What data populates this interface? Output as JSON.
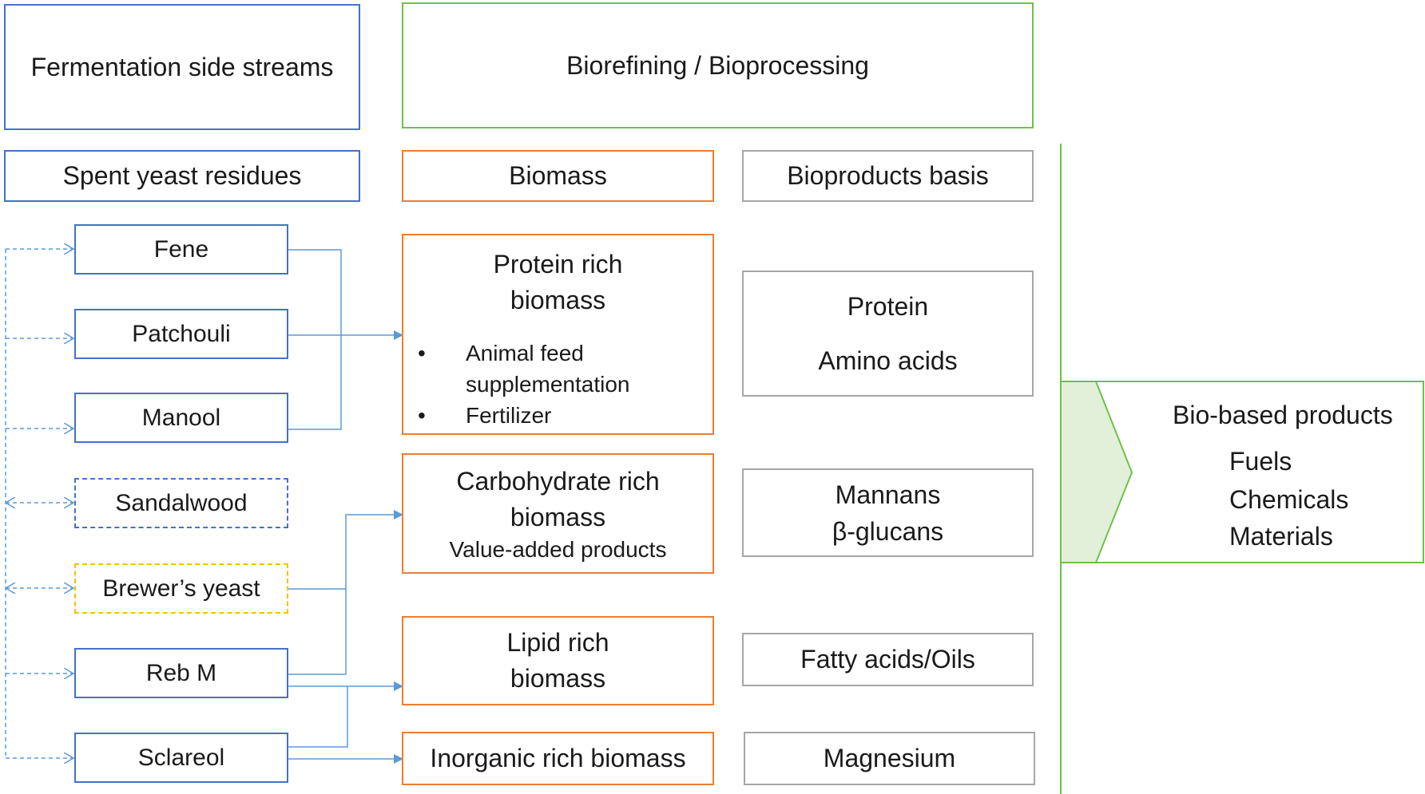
{
  "headers": {
    "fermentation": "Fermentation side streams",
    "biorefining": "Biorefining / Bioprocessing",
    "spent_yeast": "Spent yeast residues",
    "biomass": "Biomass",
    "bioproducts": "Bioproducts basis"
  },
  "sources": [
    {
      "label": "Fene"
    },
    {
      "label": "Patchouli"
    },
    {
      "label": "Manool"
    },
    {
      "label": "Sandalwood"
    },
    {
      "label": "Brewer’s yeast"
    },
    {
      "label": "Reb M"
    },
    {
      "label": "Sclareol"
    }
  ],
  "biomass": {
    "protein": {
      "title1": "Protein rich",
      "title2": "biomass",
      "bullet1a": "Animal feed",
      "bullet1b": "supplementation",
      "bullet2": "Fertilizer",
      "bullet_symbol": "•"
    },
    "carbohydrate": {
      "line1": "Carbohydrate rich",
      "line2": "biomass",
      "line3": "Value-added products"
    },
    "lipid": {
      "line1": "Lipid rich",
      "line2": "biomass"
    },
    "inorganic": {
      "line1": "Inorganic rich biomass"
    }
  },
  "bioproducts": {
    "protein": {
      "line1": "Protein",
      "line2": "Amino acids"
    },
    "carbohydrate": {
      "line1": "Mannans",
      "line2": "β-glucans"
    },
    "lipid": {
      "line1": "Fatty acids/Oils"
    },
    "inorganic": {
      "line1": "Magnesium"
    }
  },
  "outputs": {
    "title": "Bio-based products",
    "items": [
      "Fuels",
      "Chemicals",
      "Materials"
    ]
  },
  "colors": {
    "blue": "#4472c4",
    "connector_blue": "#5b9bd5",
    "orange": "#ed7d31",
    "green": "#70c04a",
    "grey": "#a6a6a6",
    "yellow": "#f2c200",
    "arrow_fill": "#e2f0d9"
  }
}
